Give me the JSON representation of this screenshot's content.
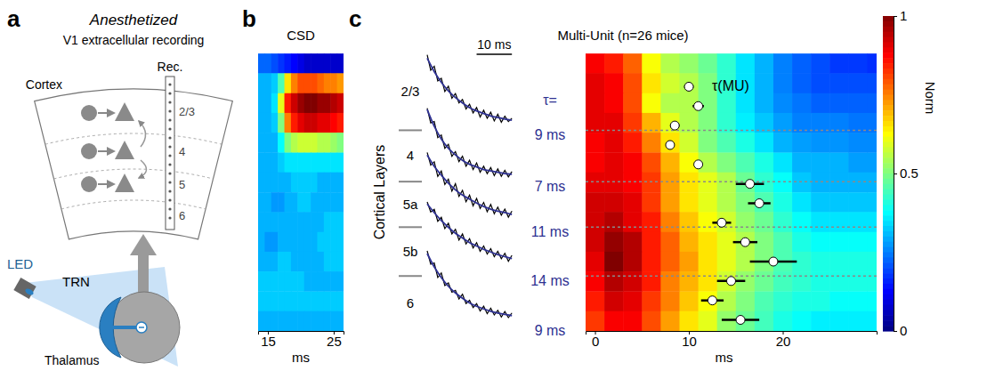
{
  "diagram": {
    "letter": "a",
    "title": "Anesthetized",
    "subtitle": "V1 extracellular recording",
    "electrode_label": "Rec.",
    "region_label": "Cortex",
    "layers": [
      "2/3",
      "4",
      "5",
      "6"
    ],
    "led_label": "LED",
    "trn_label": "TRN",
    "thalamus_label": "Thalamus"
  },
  "chart_data": [
    {
      "type": "heatmap",
      "letter": "b",
      "title": "CSD",
      "x_label": "ms",
      "x": [
        14,
        15,
        16,
        17,
        18,
        19,
        20,
        21,
        22,
        23,
        24,
        25,
        26
      ],
      "xlim": [
        13.5,
        26.5
      ],
      "xticks": [
        15,
        25
      ],
      "ylim": [
        0,
        1
      ],
      "y": [
        0.036,
        0.107,
        0.179,
        0.25,
        0.321,
        0.393,
        0.464,
        0.536,
        0.607,
        0.679,
        0.75,
        0.821,
        0.893,
        0.964
      ],
      "tick_labels": "x",
      "color_range": [
        -1,
        1
      ],
      "cells": [
        [
          -0.55,
          -0.55,
          -0.6,
          -0.65,
          -0.7,
          -0.75,
          -0.8,
          -0.85,
          -0.85,
          -0.85,
          -0.85,
          -0.85,
          -0.85
        ],
        [
          -0.4,
          -0.4,
          -0.35,
          -0.1,
          0.3,
          0.5,
          0.6,
          0.6,
          0.6,
          0.55,
          0.5,
          0.5,
          0.45
        ],
        [
          -0.4,
          -0.4,
          -0.3,
          0.2,
          0.7,
          0.85,
          0.95,
          1.0,
          1.0,
          0.95,
          0.95,
          0.9,
          0.85
        ],
        [
          -0.4,
          -0.4,
          -0.35,
          0.0,
          0.5,
          0.7,
          0.8,
          0.85,
          0.85,
          0.8,
          0.8,
          0.75,
          0.7
        ],
        [
          -0.4,
          -0.4,
          -0.4,
          -0.25,
          0.0,
          0.1,
          0.15,
          0.15,
          0.15,
          0.1,
          0.1,
          0.05,
          0.0
        ],
        [
          -0.4,
          -0.4,
          -0.4,
          -0.35,
          -0.3,
          -0.3,
          -0.3,
          -0.3,
          -0.3,
          -0.3,
          -0.3,
          -0.3,
          -0.3
        ],
        [
          -0.4,
          -0.4,
          -0.4,
          -0.4,
          -0.4,
          -0.35,
          -0.35,
          -0.35,
          -0.35,
          -0.4,
          -0.4,
          -0.4,
          -0.4
        ],
        [
          -0.4,
          -0.4,
          -0.45,
          -0.45,
          -0.4,
          -0.4,
          -0.35,
          -0.35,
          -0.4,
          -0.4,
          -0.4,
          -0.4,
          -0.4
        ],
        [
          -0.4,
          -0.4,
          -0.4,
          -0.4,
          -0.4,
          -0.4,
          -0.4,
          -0.4,
          -0.4,
          -0.4,
          -0.35,
          -0.35,
          -0.35
        ],
        [
          -0.4,
          -0.45,
          -0.45,
          -0.4,
          -0.4,
          -0.4,
          -0.4,
          -0.4,
          -0.4,
          -0.35,
          -0.35,
          -0.35,
          -0.35
        ],
        [
          -0.4,
          -0.4,
          -0.4,
          -0.35,
          -0.35,
          -0.4,
          -0.4,
          -0.4,
          -0.4,
          -0.4,
          -0.35,
          -0.35,
          -0.35
        ],
        [
          -0.35,
          -0.35,
          -0.35,
          -0.35,
          -0.35,
          -0.35,
          -0.35,
          -0.4,
          -0.4,
          -0.4,
          -0.4,
          -0.4,
          -0.4
        ],
        [
          -0.35,
          -0.35,
          -0.35,
          -0.35,
          -0.35,
          -0.35,
          -0.35,
          -0.35,
          -0.35,
          -0.35,
          -0.35,
          -0.35,
          -0.35
        ],
        [
          -0.4,
          -0.4,
          -0.4,
          -0.4,
          -0.4,
          -0.4,
          -0.4,
          -0.4,
          -0.4,
          -0.4,
          -0.4,
          -0.4,
          -0.4
        ]
      ]
    },
    {
      "type": "line",
      "letter": "c",
      "y_label": "Cortical Layers",
      "x": [
        0,
        1,
        2,
        3,
        4,
        5,
        6,
        7,
        8,
        9,
        10,
        11,
        12,
        13,
        14,
        15,
        16,
        17,
        18,
        19,
        20,
        21,
        22,
        23,
        24
      ],
      "xlim": [
        0,
        24
      ],
      "ylim": [
        -0.1,
        1.1
      ],
      "tick_labels": false,
      "fit_x": [
        0,
        2,
        4,
        6,
        8,
        10,
        12,
        14,
        16,
        18,
        20,
        22,
        24
      ],
      "tau_title": "τ=",
      "scale_bar": {
        "value": 10,
        "label": "10 ms"
      },
      "series": [
        {
          "name": "2/3",
          "color": "#000000",
          "tau": 9,
          "tau_label": "9 ms",
          "values": [
            1.05,
            0.82,
            0.88,
            0.66,
            0.7,
            0.5,
            0.58,
            0.4,
            0.47,
            0.33,
            0.38,
            0.24,
            0.31,
            0.18,
            0.26,
            0.12,
            0.22,
            0.1,
            0.19,
            0.06,
            0.16,
            0.04,
            0.13,
            0.05,
            0.1
          ],
          "fit": [
            1,
            0.8,
            0.64,
            0.51,
            0.41,
            0.33,
            0.26,
            0.21,
            0.17,
            0.135,
            0.11,
            0.087,
            0.07
          ]
        },
        {
          "name": "4",
          "color": "#000000",
          "tau": 7,
          "tau_label": "7 ms",
          "values": [
            1.02,
            0.8,
            0.82,
            0.58,
            0.62,
            0.42,
            0.48,
            0.3,
            0.37,
            0.22,
            0.3,
            0.15,
            0.24,
            0.1,
            0.2,
            0.06,
            0.15,
            0.04,
            0.13,
            0.01,
            0.11,
            0.0,
            0.09,
            -0.01,
            0.07
          ],
          "fit": [
            1,
            0.75,
            0.56,
            0.42,
            0.32,
            0.24,
            0.18,
            0.14,
            0.1,
            0.08,
            0.06,
            0.04,
            0.03
          ]
        },
        {
          "name": "5a",
          "color": "#000000",
          "tau": 11,
          "tau_label": "11 ms",
          "values": [
            1.04,
            0.85,
            0.9,
            0.68,
            0.76,
            0.56,
            0.64,
            0.46,
            0.57,
            0.38,
            0.47,
            0.3,
            0.4,
            0.24,
            0.35,
            0.2,
            0.29,
            0.15,
            0.26,
            0.12,
            0.22,
            0.1,
            0.19,
            0.07,
            0.16
          ],
          "fit": [
            1,
            0.83,
            0.7,
            0.58,
            0.48,
            0.4,
            0.34,
            0.28,
            0.23,
            0.19,
            0.16,
            0.14,
            0.11
          ]
        },
        {
          "name": "5b",
          "color": "#000000",
          "tau": 14,
          "tau_label": "14 ms",
          "values": [
            1.03,
            0.88,
            0.92,
            0.74,
            0.8,
            0.63,
            0.71,
            0.55,
            0.62,
            0.46,
            0.55,
            0.4,
            0.48,
            0.34,
            0.42,
            0.29,
            0.37,
            0.25,
            0.33,
            0.21,
            0.29,
            0.18,
            0.26,
            0.14,
            0.23
          ],
          "fit": [
            1,
            0.87,
            0.75,
            0.65,
            0.56,
            0.49,
            0.42,
            0.37,
            0.32,
            0.28,
            0.24,
            0.21,
            0.18
          ]
        },
        {
          "name": "6",
          "color": "#000000",
          "tau": 9,
          "tau_label": "9 ms",
          "values": [
            1.04,
            0.84,
            0.86,
            0.64,
            0.71,
            0.52,
            0.56,
            0.42,
            0.45,
            0.32,
            0.39,
            0.25,
            0.3,
            0.19,
            0.25,
            0.14,
            0.21,
            0.1,
            0.18,
            0.08,
            0.15,
            0.05,
            0.13,
            0.04,
            0.11
          ],
          "fit": [
            1,
            0.8,
            0.64,
            0.51,
            0.41,
            0.33,
            0.26,
            0.21,
            0.17,
            0.135,
            0.11,
            0.087,
            0.07
          ]
        }
      ]
    },
    {
      "type": "heatmap",
      "title": "Multi-Unit (n=26 mice)",
      "x_label": "ms",
      "x": [
        0,
        2,
        4,
        6,
        8,
        10,
        12,
        14,
        16,
        18,
        20,
        22,
        24,
        26,
        28,
        30
      ],
      "xlim": [
        -1,
        30
      ],
      "xticks": [
        0,
        10,
        20
      ],
      "ylim": [
        0,
        1
      ],
      "y": [
        0.036,
        0.107,
        0.179,
        0.25,
        0.321,
        0.393,
        0.464,
        0.536,
        0.607,
        0.679,
        0.75,
        0.821,
        0.893,
        0.964
      ],
      "tick_labels": "x",
      "cells": [
        [
          0.88,
          0.85,
          0.78,
          0.62,
          0.55,
          0.52,
          0.48,
          0.42,
          0.35,
          0.3,
          0.25,
          0.22,
          0.2,
          0.18,
          0.18,
          0.17
        ],
        [
          0.9,
          0.88,
          0.8,
          0.65,
          0.58,
          0.55,
          0.5,
          0.42,
          0.35,
          0.3,
          0.25,
          0.22,
          0.2,
          0.2,
          0.2,
          0.2
        ],
        [
          0.9,
          0.88,
          0.8,
          0.62,
          0.55,
          0.55,
          0.5,
          0.42,
          0.35,
          0.3,
          0.26,
          0.24,
          0.22,
          0.22,
          0.22,
          0.22
        ],
        [
          0.9,
          0.9,
          0.82,
          0.7,
          0.6,
          0.55,
          0.5,
          0.42,
          0.36,
          0.32,
          0.28,
          0.25,
          0.25,
          0.25,
          0.24,
          0.24
        ],
        [
          0.88,
          0.9,
          0.85,
          0.75,
          0.65,
          0.58,
          0.5,
          0.45,
          0.4,
          0.35,
          0.3,
          0.28,
          0.27,
          0.27,
          0.26,
          0.26
        ],
        [
          0.88,
          0.9,
          0.88,
          0.8,
          0.7,
          0.62,
          0.55,
          0.5,
          0.45,
          0.4,
          0.35,
          0.3,
          0.3,
          0.3,
          0.28,
          0.28
        ],
        [
          0.9,
          0.9,
          0.88,
          0.82,
          0.72,
          0.65,
          0.6,
          0.55,
          0.48,
          0.42,
          0.38,
          0.32,
          0.3,
          0.3,
          0.3,
          0.3
        ],
        [
          0.92,
          0.92,
          0.9,
          0.82,
          0.72,
          0.65,
          0.6,
          0.55,
          0.5,
          0.45,
          0.4,
          0.35,
          0.32,
          0.32,
          0.32,
          0.32
        ],
        [
          0.92,
          0.95,
          0.9,
          0.85,
          0.75,
          0.68,
          0.62,
          0.58,
          0.52,
          0.48,
          0.42,
          0.38,
          0.35,
          0.35,
          0.35,
          0.35
        ],
        [
          0.92,
          0.98,
          0.95,
          0.85,
          0.78,
          0.7,
          0.65,
          0.6,
          0.55,
          0.5,
          0.45,
          0.4,
          0.38,
          0.38,
          0.38,
          0.38
        ],
        [
          0.9,
          1.0,
          0.95,
          0.85,
          0.78,
          0.72,
          0.65,
          0.6,
          0.55,
          0.5,
          0.45,
          0.42,
          0.4,
          0.4,
          0.4,
          0.4
        ],
        [
          0.88,
          0.95,
          0.92,
          0.85,
          0.75,
          0.7,
          0.65,
          0.58,
          0.52,
          0.48,
          0.44,
          0.42,
          0.4,
          0.4,
          0.4,
          0.4
        ],
        [
          0.85,
          0.92,
          0.9,
          0.82,
          0.75,
          0.68,
          0.62,
          0.55,
          0.5,
          0.45,
          0.42,
          0.4,
          0.4,
          0.38,
          0.38,
          0.38
        ],
        [
          0.82,
          0.88,
          0.88,
          0.8,
          0.72,
          0.65,
          0.6,
          0.52,
          0.48,
          0.44,
          0.4,
          0.38,
          0.36,
          0.36,
          0.36,
          0.36
        ]
      ],
      "colorbar": {
        "label": "Norm",
        "range": [
          0,
          1
        ],
        "ticks": [
          0,
          0.5,
          1
        ]
      },
      "layer_boundaries": [
        0.277,
        0.462,
        0.626,
        0.802
      ],
      "points": {
        "name": "τ(MU)",
        "depth": [
          0.12,
          0.19,
          0.26,
          0.33,
          0.4,
          0.47,
          0.54,
          0.61,
          0.68,
          0.75,
          0.82,
          0.89,
          0.96
        ],
        "values": [
          10,
          11,
          8.5,
          8,
          11,
          16.5,
          17.5,
          13.5,
          16,
          19,
          14.5,
          12.5,
          15.5
        ],
        "error": [
          0.5,
          0.6,
          0.5,
          0.4,
          0.4,
          1.5,
          1.2,
          1.0,
          1.3,
          2.5,
          1.5,
          1.2,
          2.0
        ]
      }
    }
  ]
}
